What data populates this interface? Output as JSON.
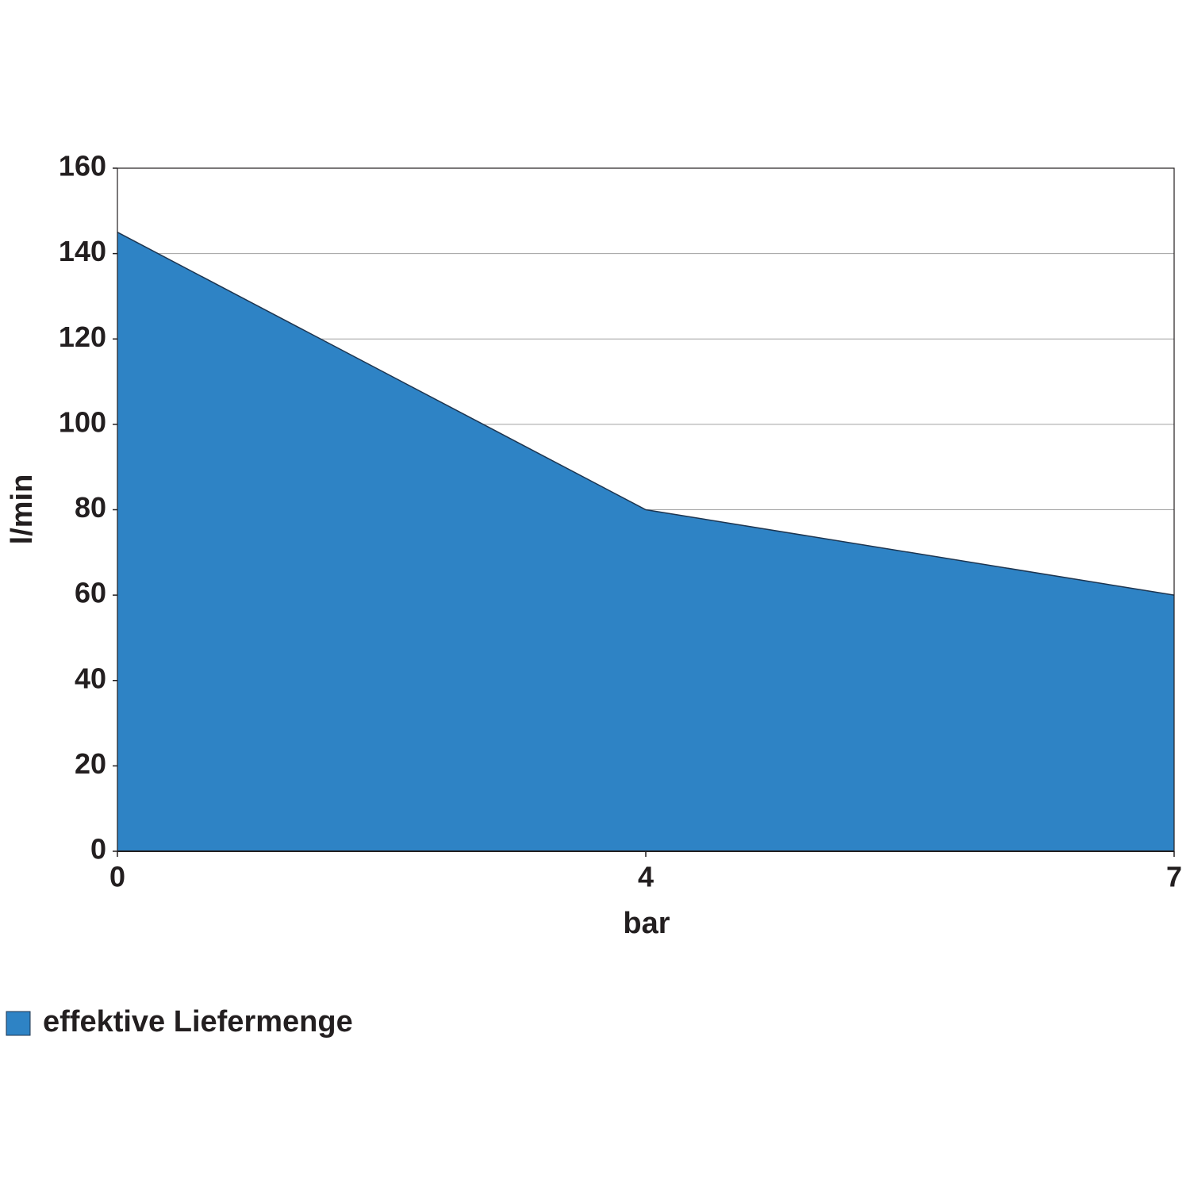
{
  "chart_data": {
    "type": "area",
    "categories": [
      "0",
      "4",
      "7"
    ],
    "series": [
      {
        "name": "effektive Liefermenge",
        "color": "#2e83c5",
        "values": [
          145,
          80,
          60
        ]
      }
    ],
    "x_label": "bar",
    "y_label": "l/min",
    "ylim": [
      0,
      160
    ],
    "yticks": [
      0,
      20,
      40,
      60,
      80,
      100,
      120,
      140,
      160
    ],
    "grid": true,
    "legend": "bottom-left"
  }
}
